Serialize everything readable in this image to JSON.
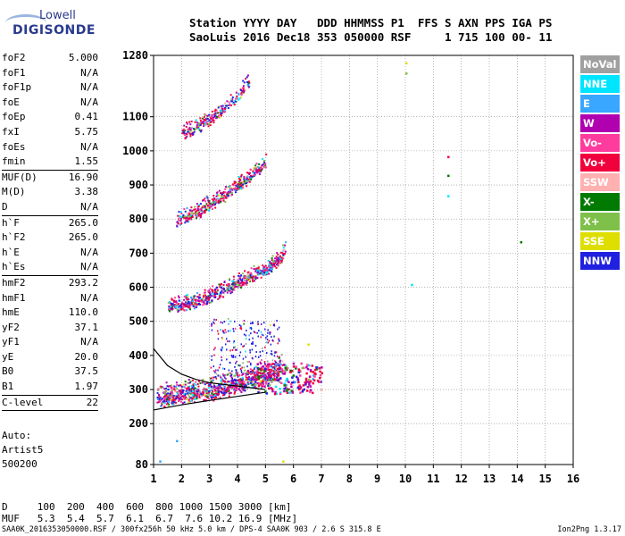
{
  "logo": {
    "line1": "Lowell",
    "line2": "DIGISONDE"
  },
  "header": {
    "labels": "Station YYYY DAY   DDD HHMMSS P1  FFS S AXN PPS IGA PS",
    "values": "SaoLuis 2016 Dec18 353 050000 RSF     1 715 100 00- 11"
  },
  "params": [
    {
      "label": "foF2",
      "value": "5.000"
    },
    {
      "label": "foF1",
      "value": "N/A"
    },
    {
      "label": "foF1p",
      "value": "N/A"
    },
    {
      "label": "foE",
      "value": "N/A"
    },
    {
      "label": "foEp",
      "value": "0.41"
    },
    {
      "label": "fxI",
      "value": "5.75"
    },
    {
      "label": "foEs",
      "value": "N/A"
    },
    {
      "label": "fmin",
      "value": "1.55"
    },
    {
      "sep": true
    },
    {
      "label": "MUF(D)",
      "value": "16.90"
    },
    {
      "label": "M(D)",
      "value": "3.38"
    },
    {
      "label": "D",
      "value": "N/A"
    },
    {
      "sep": true
    },
    {
      "label": "h`F",
      "value": "265.0"
    },
    {
      "label": "h`F2",
      "value": "265.0"
    },
    {
      "label": "h`E",
      "value": "N/A"
    },
    {
      "label": "h`Es",
      "value": "N/A"
    },
    {
      "sep": true
    },
    {
      "label": "hmF2",
      "value": "293.2"
    },
    {
      "label": "hmF1",
      "value": "N/A"
    },
    {
      "label": "hmE",
      "value": "110.0"
    },
    {
      "label": "yF2",
      "value": "37.1"
    },
    {
      "label": "yF1",
      "value": "N/A"
    },
    {
      "label": "yE",
      "value": "20.0"
    },
    {
      "label": "B0",
      "value": "37.5"
    },
    {
      "label": "B1",
      "value": "1.97"
    },
    {
      "sep": true
    },
    {
      "label": "C-level",
      "value": "22"
    },
    {
      "sep": true
    }
  ],
  "auto": {
    "line1": "Auto:",
    "line2": "Artist5",
    "line3": "500200"
  },
  "legend": [
    {
      "label": "NoVal",
      "color": "#a0a0a0"
    },
    {
      "label": "NNE",
      "color": "#00e5ff"
    },
    {
      "label": "E",
      "color": "#39a7ff"
    },
    {
      "label": "W",
      "color": "#b000b0"
    },
    {
      "label": "Vo-",
      "color": "#ff3c9e"
    },
    {
      "label": "Vo+",
      "color": "#f0003c"
    },
    {
      "label": "SSW",
      "color": "#ffb0b0"
    },
    {
      "label": "X-",
      "color": "#007a00"
    },
    {
      "label": "X+",
      "color": "#7fc04a"
    },
    {
      "label": "SSE",
      "color": "#dede00"
    },
    {
      "label": "NNW",
      "color": "#2020e0"
    }
  ],
  "muf_table": {
    "d_line": "D     100  200  400  600  800 1000 1500 3000 [km]",
    "muf_line": "MUF   5.3  5.4  5.7  6.1  6.7  7.6 10.2 16.9 [MHz]"
  },
  "footer": "SAA0K_2016353050000.RSF / 300fx256h 50 kHz 5.0 km / DPS-4 SAA0K 903 / 2.6 S 315.8 E",
  "version": "Ion2Png 1.3.17",
  "chart_data": {
    "type": "scatter",
    "xlim": [
      1,
      16
    ],
    "ylim": [
      80,
      1280
    ],
    "x_ticks": [
      1,
      2,
      3,
      4,
      5,
      6,
      7,
      8,
      9,
      10,
      11,
      12,
      13,
      14,
      15,
      16
    ],
    "y_ticks": [
      80,
      200,
      300,
      400,
      500,
      600,
      700,
      800,
      900,
      1000,
      1100,
      1280
    ],
    "grid": true,
    "traces": [
      {
        "name": "trace-1",
        "x": [
          1.1,
          1.6,
          2.5,
          3.0,
          3.5,
          4.0,
          4.5,
          5.0,
          5.3,
          5.6
        ],
        "y": [
          270,
          275,
          285,
          290,
          300,
          310,
          320,
          335,
          345,
          360
        ]
      },
      {
        "name": "trace-2",
        "x": [
          1.5,
          2.0,
          2.5,
          3.0,
          3.5,
          4.0,
          4.5,
          5.0,
          5.5,
          5.7
        ],
        "y": [
          540,
          545,
          555,
          570,
          590,
          610,
          630,
          650,
          680,
          710
        ]
      },
      {
        "name": "trace-3",
        "x": [
          1.8,
          2.2,
          2.6,
          3.0,
          3.4,
          3.8,
          4.2,
          4.6,
          5.0
        ],
        "y": [
          790,
          805,
          820,
          840,
          860,
          885,
          905,
          935,
          960
        ]
      },
      {
        "name": "trace-4",
        "x": [
          2.0,
          2.4,
          2.8,
          3.2,
          3.6,
          4.0,
          4.4
        ],
        "y": [
          1050,
          1060,
          1080,
          1100,
          1130,
          1160,
          1200
        ]
      }
    ],
    "profile_curve": {
      "x": [
        1.0,
        1.5,
        2.0,
        2.5,
        3.0,
        3.5,
        4.0,
        4.5,
        5.0
      ],
      "y": [
        420,
        370,
        345,
        330,
        320,
        315,
        310,
        305,
        300
      ]
    },
    "lower_curve": {
      "x": [
        1.0,
        2.0,
        3.0,
        4.0,
        5.0
      ],
      "y": [
        240,
        255,
        268,
        280,
        292
      ]
    },
    "isolated_points": [
      {
        "x": 10.0,
        "y": 1260,
        "color": "#dede00"
      },
      {
        "x": 10.0,
        "y": 1230,
        "color": "#7fc04a"
      },
      {
        "x": 11.5,
        "y": 985,
        "color": "#f0003c"
      },
      {
        "x": 11.5,
        "y": 930,
        "color": "#007a00"
      },
      {
        "x": 11.5,
        "y": 870,
        "color": "#00e5ff"
      },
      {
        "x": 10.2,
        "y": 610,
        "color": "#00e5ff"
      },
      {
        "x": 14.1,
        "y": 735,
        "color": "#007a00"
      },
      {
        "x": 6.5,
        "y": 435,
        "color": "#dede00"
      },
      {
        "x": 1.8,
        "y": 152,
        "color": "#39a7ff"
      },
      {
        "x": 1.2,
        "y": 92,
        "color": "#39a7ff"
      },
      {
        "x": 5.6,
        "y": 92,
        "color": "#dede00"
      }
    ]
  }
}
